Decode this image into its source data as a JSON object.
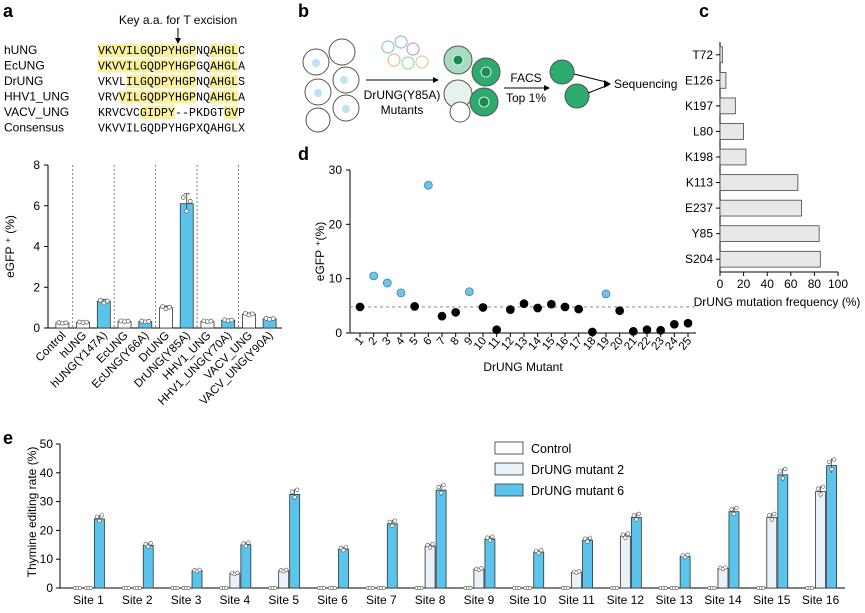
{
  "panels": {
    "a": "a",
    "b": "b",
    "c": "c",
    "d": "d",
    "e": "e"
  },
  "alignment": {
    "annotation": "Key a.a. for T excision",
    "rows": [
      {
        "name": "hUNG",
        "seq": "VKVVILGQDPYHGPNQAHGLC"
      },
      {
        "name": "EcUNG",
        "seq": "VKVVILGQDPYHGPGQAHGLA"
      },
      {
        "name": "DrUNG",
        "seq": "VKVLILGQDPYHGPNQAHGLS"
      },
      {
        "name": "HHV1_UNG",
        "seq": "VRVVILGQDPYHGPNQAHGLA"
      },
      {
        "name": "VACV_UNG",
        "seq": "KRVCVCGIDPY--PKDGTGVP"
      },
      {
        "name": "Consensus",
        "seq": "VKVVILGQDPYHGPXQAHGLX"
      }
    ],
    "highlight_color": "#fbf19a"
  },
  "workflow": {
    "mutants_label_1": "DrUNG(Y85A)",
    "mutants_label_2": "Mutants",
    "facs_label_1": "FACS",
    "facs_label_2": "Top 1%",
    "sequencing_label": "Sequencing"
  },
  "colors": {
    "blue": "#5bc4ec",
    "light_blue": "#e9f1f9",
    "white": "#ffffff",
    "black": "#000000",
    "point_blue": "#6fc3e9",
    "hbar": "#e8e8e8",
    "green": "#2daa6e"
  },
  "chart_data": [
    {
      "id": "a_bar",
      "type": "bar",
      "ylabel": "eGFP ⁺ (%)",
      "ylim": [
        0,
        8
      ],
      "yticks": [
        0,
        2,
        4,
        6,
        8
      ],
      "categories": [
        "Control",
        "hUNG",
        "hUNG(Y147A)",
        "EcUNG",
        "EcUNG(Y66A)",
        "DrUNG",
        "DrUNG(Y85A)",
        "HHV1_UNG",
        "HHV1_UNG(Y70A)",
        "VACV_UNG",
        "VACV_UNG(Y90A)"
      ],
      "values": [
        0.25,
        0.28,
        1.3,
        0.33,
        0.32,
        1.0,
        6.1,
        0.33,
        0.38,
        0.68,
        0.45
      ],
      "fill": [
        "white",
        "white",
        "blue",
        "white",
        "blue",
        "white",
        "blue",
        "white",
        "blue",
        "white",
        "blue"
      ]
    },
    {
      "id": "d_scatter",
      "type": "scatter",
      "xlabel": "DrUNG Mutant",
      "ylabel": "eGFP ⁺(%)",
      "ylim": [
        0,
        30
      ],
      "yticks": [
        0,
        10,
        20,
        30
      ],
      "threshold": 4.8,
      "x": [
        1,
        2,
        3,
        4,
        5,
        6,
        7,
        8,
        9,
        10,
        11,
        12,
        13,
        14,
        15,
        16,
        17,
        18,
        19,
        20,
        21,
        22,
        23,
        24,
        25
      ],
      "y": [
        4.8,
        10.5,
        9.2,
        7.4,
        4.9,
        27.2,
        3.1,
        3.8,
        7.6,
        4.7,
        0.6,
        4.3,
        5.4,
        4.6,
        5.3,
        4.8,
        4.4,
        0.2,
        7.2,
        4.1,
        0.3,
        0.6,
        0.5,
        1.6,
        1.8
      ],
      "highlighted": [
        2,
        3,
        4,
        6,
        9,
        19
      ]
    },
    {
      "id": "c_hbar",
      "type": "bar",
      "xlabel": "DrUNG mutation frequency (%)",
      "xlim": [
        0,
        100
      ],
      "xticks": [
        0,
        20,
        40,
        60,
        80,
        100
      ],
      "categories": [
        "T72",
        "E126",
        "K197",
        "L80",
        "K198",
        "K113",
        "E237",
        "Y85",
        "S204"
      ],
      "values": [
        2,
        5,
        13,
        20,
        22,
        66,
        69,
        84,
        85
      ]
    },
    {
      "id": "e_grouped",
      "type": "bar",
      "ylabel": "Thymine editing rate (%)",
      "ylim": [
        0,
        50
      ],
      "yticks": [
        0,
        10,
        20,
        30,
        40,
        50
      ],
      "categories": [
        "Site 1",
        "Site 2",
        "Site 3",
        "Site 4",
        "Site 5",
        "Site 6",
        "Site 7",
        "Site 8",
        "Site 9",
        "Site 10",
        "Site 11",
        "Site 12",
        "Site 13",
        "Site 14",
        "Site 15",
        "Site 16"
      ],
      "series": [
        {
          "name": "Control",
          "values": [
            0,
            0,
            0,
            0,
            0,
            0,
            0,
            0,
            0,
            0,
            0,
            0,
            0,
            0,
            0,
            0
          ]
        },
        {
          "name": "DrUNG mutant 2",
          "values": [
            0,
            0,
            0,
            5,
            6,
            0,
            0,
            14.5,
            6.5,
            0,
            5.5,
            18,
            0,
            6.8,
            24.5,
            33.5
          ]
        },
        {
          "name": "DrUNG mutant 6",
          "values": [
            24,
            14.8,
            6,
            15,
            32.5,
            13.5,
            22.3,
            34,
            17,
            12.5,
            16.6,
            24.5,
            11,
            26.5,
            39.3,
            42.5
          ]
        }
      ]
    }
  ]
}
